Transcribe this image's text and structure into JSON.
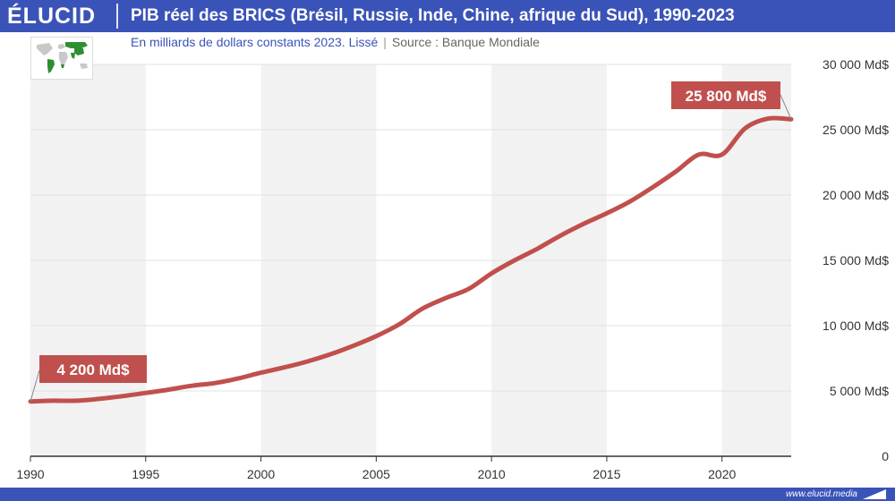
{
  "header": {
    "brand": "ÉLUCID",
    "title": "PIB réel des BRICS (Brésil, Russie, Inde, Chine, afrique du Sud), 1990-2023",
    "subtitle_main": "En milliards de dollars constants 2023. Lissé",
    "subtitle_sep": "|",
    "subtitle_source": "Source : Banque Mondiale"
  },
  "footer": {
    "site": "www.elucid.media"
  },
  "colors": {
    "brand_blue": "#3a53b8",
    "series": "#c0504d",
    "band": "#f2f2f2"
  },
  "map_icon": "world-map-brics-highlighted-icon",
  "chart_data": {
    "type": "line",
    "title": "PIB réel des BRICS (Brésil, Russie, Inde, Chine, afrique du Sud), 1990-2023",
    "xlabel": "",
    "ylabel": "",
    "xlim": [
      1990,
      2023
    ],
    "ylim": [
      0,
      30000
    ],
    "x_ticks": [
      "1990",
      "1995",
      "2000",
      "2005",
      "2010",
      "2015",
      "2020"
    ],
    "y_ticks": [
      "0",
      "5 000 Md$",
      "10 000 Md$",
      "15 000 Md$",
      "20 000 Md$",
      "25 000 Md$",
      "30 000 Md$"
    ],
    "grid": true,
    "series": [
      {
        "x": [
          1990,
          1991,
          1992,
          1993,
          1994,
          1995,
          1996,
          1997,
          1998,
          1999,
          2000,
          2001,
          2002,
          2003,
          2004,
          2005,
          2006,
          2007,
          2008,
          2009,
          2010,
          2011,
          2012,
          2013,
          2014,
          2015,
          2016,
          2017,
          2018,
          2019,
          2020,
          2021,
          2022,
          2023
        ],
        "values": [
          4200,
          4250,
          4250,
          4400,
          4600,
          4850,
          5100,
          5400,
          5600,
          5950,
          6400,
          6800,
          7250,
          7800,
          8450,
          9200,
          10100,
          11300,
          12100,
          12800,
          14000,
          15000,
          15900,
          16900,
          17800,
          18600,
          19500,
          20600,
          21800,
          23100,
          23100,
          25100,
          25850,
          25800
        ]
      }
    ],
    "annotations": [
      {
        "label": "4 200 Md$",
        "x": 1990,
        "y": 4200
      },
      {
        "label": "25 800 Md$",
        "x": 2023,
        "y": 25800
      }
    ]
  }
}
